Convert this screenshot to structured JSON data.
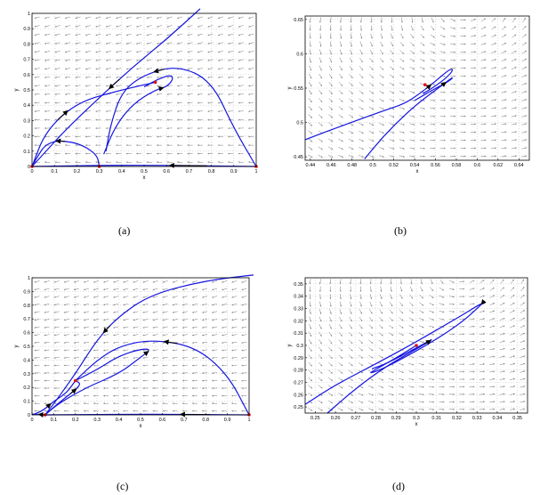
{
  "captions": {
    "a": "(a)",
    "b": "(b)",
    "c": "(c)",
    "d": "(d)"
  },
  "colors": {
    "trajectory": "#1414e0",
    "vector_field": "#7a7a7a",
    "equilibrium": "#e01010",
    "grid": "#bdbdbd"
  },
  "chart_data": [
    {
      "type": "line",
      "panel": "a",
      "subtype": "phase portrait with vector field",
      "xlabel": "x",
      "ylabel": "y",
      "xlim": [
        0,
        1
      ],
      "ylim": [
        0,
        1
      ],
      "xticks": [
        "0",
        "0.1",
        "0.2",
        "0.3",
        "0.4",
        "0.5",
        "0.6",
        "0.7",
        "0.8",
        "0.9",
        "1"
      ],
      "yticks": [
        "0",
        "0.1",
        "0.2",
        "0.3",
        "0.4",
        "0.5",
        "0.6",
        "0.7",
        "0.8",
        "0.9",
        "1"
      ],
      "grid": true,
      "equilibria": [
        {
          "x": 0,
          "y": 0
        },
        {
          "x": 0.3,
          "y": 0
        },
        {
          "x": 1,
          "y": 0
        },
        {
          "x": 0.55,
          "y": 0.55
        }
      ],
      "series": [
        {
          "values": [
            [
              1,
              0
            ],
            [
              0.45,
              0.01
            ],
            [
              0,
              0
            ]
          ]
        },
        {
          "values": [
            [
              0.3,
              0
            ],
            [
              0.29,
              0.08
            ],
            [
              0.2,
              0.16
            ],
            [
              0.07,
              0.17
            ],
            [
              0.01,
              0.03
            ],
            [
              0,
              0
            ]
          ]
        },
        {
          "values": [
            [
              0.75,
              1.03
            ],
            [
              0.6,
              0.83
            ],
            [
              0.45,
              0.65
            ],
            [
              0.3,
              0.45
            ],
            [
              0.15,
              0.24
            ],
            [
              0.05,
              0.08
            ],
            [
              0,
              0
            ]
          ]
        },
        {
          "values": [
            [
              0,
              0
            ],
            [
              0.06,
              0.23
            ],
            [
              0.2,
              0.42
            ],
            [
              0.4,
              0.5
            ],
            [
              0.55,
              0.55
            ]
          ]
        },
        {
          "values": [
            [
              0.32,
              0.08
            ],
            [
              0.37,
              0.26
            ],
            [
              0.45,
              0.41
            ],
            [
              0.55,
              0.5
            ],
            [
              0.6,
              0.52
            ],
            [
              0.63,
              0.57
            ],
            [
              0.62,
              0.6
            ],
            [
              0.56,
              0.57
            ],
            [
              0.5,
              0.52
            ]
          ]
        },
        {
          "values": [
            [
              1,
              0
            ],
            [
              0.9,
              0.25
            ],
            [
              0.8,
              0.56
            ],
            [
              0.65,
              0.66
            ],
            [
              0.5,
              0.6
            ],
            [
              0.4,
              0.49
            ],
            [
              0.35,
              0.27
            ],
            [
              0.33,
              0.1
            ]
          ]
        }
      ]
    },
    {
      "type": "line",
      "panel": "b",
      "subtype": "phase portrait with vector field (zoom)",
      "xlabel": "x",
      "ylabel": "y",
      "xlim": [
        0.435,
        0.65
      ],
      "ylim": [
        0.445,
        0.655
      ],
      "xticks": [
        "0.44",
        "0.46",
        "0.48",
        "0.5",
        "0.52",
        "0.54",
        "0.56",
        "0.58",
        "0.6",
        "0.62",
        "0.64"
      ],
      "yticks": [
        "0.45",
        "0.5",
        "0.55",
        "0.6",
        "0.65"
      ],
      "grid": true,
      "equilibria": [
        {
          "x": 0.55,
          "y": 0.555
        }
      ],
      "series": [
        {
          "values": [
            [
              0.435,
              0.475
            ],
            [
              0.47,
              0.495
            ],
            [
              0.51,
              0.517
            ],
            [
              0.53,
              0.527
            ],
            [
              0.545,
              0.542
            ],
            [
              0.56,
              0.56
            ],
            [
              0.573,
              0.577
            ],
            [
              0.577,
              0.578
            ],
            [
              0.574,
              0.57
            ],
            [
              0.562,
              0.555
            ],
            [
              0.548,
              0.542
            ]
          ]
        },
        {
          "values": [
            [
              0.492,
              0.447
            ],
            [
              0.51,
              0.48
            ],
            [
              0.53,
              0.51
            ],
            [
              0.545,
              0.53
            ],
            [
              0.56,
              0.547
            ],
            [
              0.574,
              0.563
            ],
            [
              0.577,
              0.566
            ],
            [
              0.573,
              0.56
            ],
            [
              0.558,
              0.548
            ],
            [
              0.54,
              0.532
            ]
          ]
        }
      ]
    },
    {
      "type": "line",
      "panel": "c",
      "subtype": "phase portrait with vector field",
      "xlabel": "x",
      "ylabel": "y",
      "xlim": [
        0,
        1
      ],
      "ylim": [
        0,
        1
      ],
      "xticks": [
        "0",
        "0.1",
        "0.2",
        "0.3",
        "0.4",
        "0.5",
        "0.6",
        "0.7",
        "0.8",
        "0.9",
        "1"
      ],
      "yticks": [
        "0",
        "0.1",
        "0.2",
        "0.3",
        "0.4",
        "0.5",
        "0.6",
        "0.7",
        "0.8",
        "0.9",
        "1"
      ],
      "grid": true,
      "equilibria": [
        {
          "x": 0.06,
          "y": 0
        },
        {
          "x": 1,
          "y": 0
        },
        {
          "x": 0.2,
          "y": 0.25
        }
      ],
      "series": [
        {
          "values": [
            [
              1,
              0
            ],
            [
              0.55,
              0.005
            ],
            [
              0.06,
              0
            ]
          ]
        },
        {
          "values": [
            [
              1.02,
              1.02
            ],
            [
              0.8,
              0.98
            ],
            [
              0.55,
              0.88
            ],
            [
              0.4,
              0.72
            ],
            [
              0.3,
              0.55
            ],
            [
              0.2,
              0.3
            ],
            [
              0.1,
              0.08
            ],
            [
              0.06,
              0
            ]
          ]
        },
        {
          "values": [
            [
              1,
              0
            ],
            [
              0.9,
              0.3
            ],
            [
              0.75,
              0.5
            ],
            [
              0.55,
              0.55
            ],
            [
              0.4,
              0.5
            ],
            [
              0.3,
              0.4
            ],
            [
              0.2,
              0.25
            ]
          ]
        },
        {
          "values": [
            [
              0.06,
              0
            ],
            [
              0.12,
              0.08
            ],
            [
              0.25,
              0.2
            ],
            [
              0.4,
              0.3
            ],
            [
              0.5,
              0.42
            ],
            [
              0.55,
              0.48
            ],
            [
              0.5,
              0.48
            ],
            [
              0.4,
              0.43
            ],
            [
              0.3,
              0.33
            ],
            [
              0.2,
              0.25
            ]
          ]
        },
        {
          "values": [
            [
              0,
              0
            ],
            [
              0.05,
              0.03
            ],
            [
              0.1,
              0.1
            ],
            [
              0.16,
              0.16
            ],
            [
              0.2,
              0.25
            ]
          ]
        },
        {
          "values": [
            [
              0.06,
              0
            ],
            [
              0.14,
              0.11
            ],
            [
              0.23,
              0.22
            ],
            [
              0.2,
              0.25
            ]
          ]
        },
        {
          "values": [
            [
              0.06,
              0
            ],
            [
              0.02,
              0.005
            ],
            [
              0,
              0.005
            ]
          ]
        }
      ]
    },
    {
      "type": "line",
      "panel": "d",
      "subtype": "phase portrait with vector field (zoom)",
      "xlabel": "x",
      "ylabel": "y",
      "xlim": [
        0.245,
        0.355
      ],
      "ylim": [
        0.245,
        0.355
      ],
      "xticks": [
        "0.25",
        "0.26",
        "0.27",
        "0.28",
        "0.29",
        "0.3",
        "0.31",
        "0.32",
        "0.33",
        "0.34",
        "0.35"
      ],
      "yticks": [
        "0.25",
        "0.26",
        "0.27",
        "0.28",
        "0.29",
        "0.3",
        "0.31",
        "0.32",
        "0.33",
        "0.34",
        "0.35"
      ],
      "grid": true,
      "equilibria": [
        {
          "x": 0.3,
          "y": 0.3
        }
      ],
      "series": [
        {
          "values": [
            [
              0.245,
              0.252
            ],
            [
              0.26,
              0.268
            ],
            [
              0.28,
              0.285
            ],
            [
              0.3,
              0.303
            ],
            [
              0.32,
              0.322
            ],
            [
              0.333,
              0.335
            ],
            [
              0.332,
              0.333
            ],
            [
              0.322,
              0.318
            ],
            [
              0.305,
              0.3
            ],
            [
              0.285,
              0.282
            ],
            [
              0.275,
              0.276
            ],
            [
              0.285,
              0.285
            ],
            [
              0.3,
              0.3
            ]
          ]
        },
        {
          "values": [
            [
              0.256,
              0.245
            ],
            [
              0.27,
              0.265
            ],
            [
              0.285,
              0.283
            ],
            [
              0.3,
              0.297
            ],
            [
              0.31,
              0.307
            ],
            [
              0.3,
              0.298
            ],
            [
              0.285,
              0.285
            ],
            [
              0.278,
              0.281
            ]
          ]
        }
      ]
    }
  ]
}
